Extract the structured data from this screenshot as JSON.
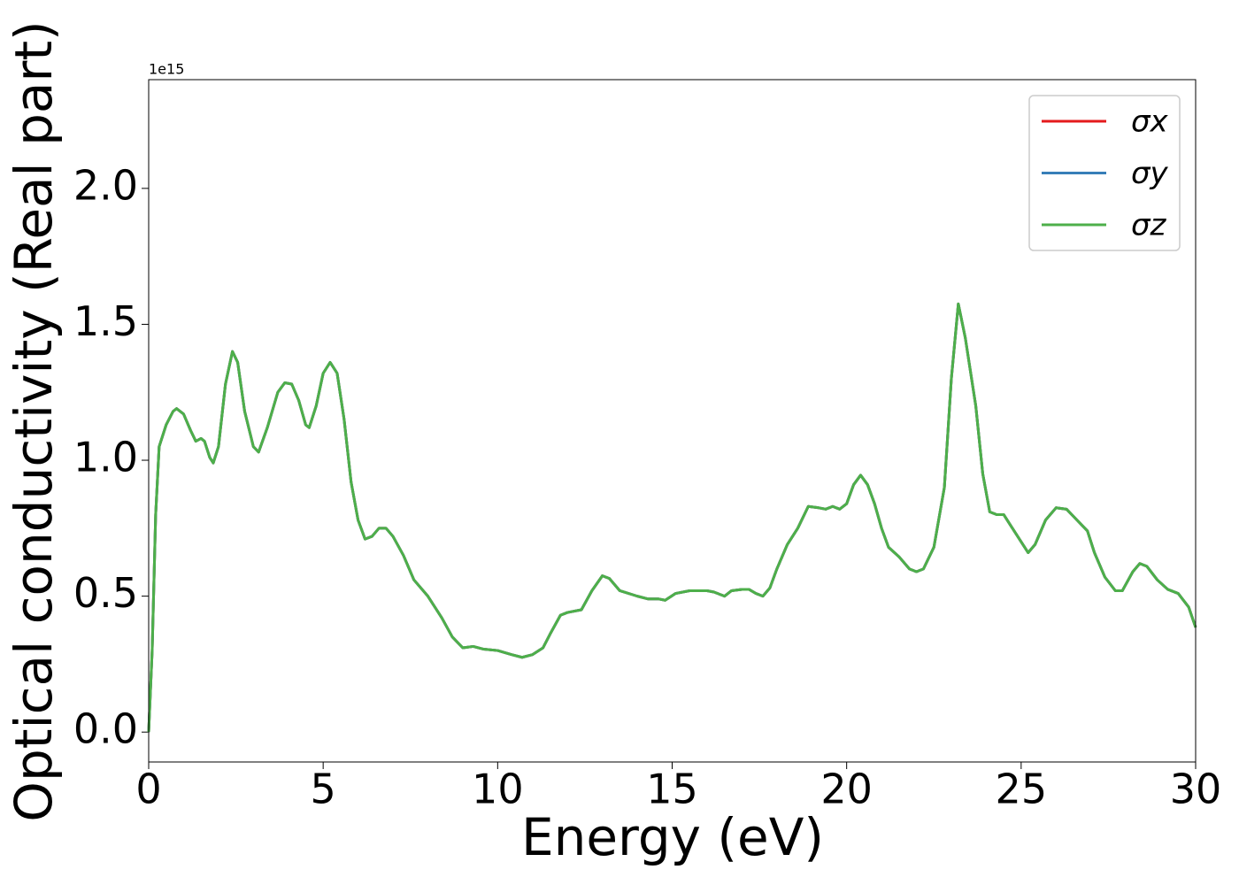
{
  "chart_data": {
    "type": "line",
    "xlabel": "Energy (eV)",
    "ylabel": "Optical conductivity (Real part)",
    "y_offset_label": "1e15",
    "x": [
      0,
      0.1,
      0.2,
      0.3,
      0.5,
      0.7,
      0.8,
      1.0,
      1.2,
      1.35,
      1.5,
      1.6,
      1.75,
      1.85,
      2.0,
      2.2,
      2.4,
      2.55,
      2.75,
      3.0,
      3.15,
      3.4,
      3.7,
      3.9,
      4.1,
      4.3,
      4.5,
      4.6,
      4.8,
      5.0,
      5.2,
      5.4,
      5.6,
      5.8,
      6.0,
      6.2,
      6.4,
      6.6,
      6.8,
      7.0,
      7.3,
      7.6,
      8.0,
      8.4,
      8.7,
      9.0,
      9.3,
      9.6,
      10.0,
      10.4,
      10.7,
      11.0,
      11.3,
      11.5,
      11.8,
      12.0,
      12.4,
      12.7,
      13.0,
      13.2,
      13.5,
      14.0,
      14.3,
      14.6,
      14.8,
      15.1,
      15.5,
      16.0,
      16.2,
      16.5,
      16.7,
      17.0,
      17.2,
      17.4,
      17.6,
      17.8,
      18.0,
      18.3,
      18.6,
      18.9,
      19.2,
      19.4,
      19.6,
      19.8,
      20.0,
      20.2,
      20.4,
      20.6,
      20.8,
      21.0,
      21.2,
      21.5,
      21.8,
      22.0,
      22.2,
      22.5,
      22.8,
      23.0,
      23.2,
      23.4,
      23.7,
      23.9,
      24.1,
      24.3,
      24.5,
      24.7,
      25.0,
      25.2,
      25.4,
      25.7,
      26.0,
      26.3,
      26.6,
      26.9,
      27.1,
      27.4,
      27.7,
      27.9,
      28.2,
      28.4,
      28.6,
      28.9,
      29.2,
      29.5,
      29.8,
      30
    ],
    "series": [
      {
        "name": "σx",
        "color": "#e41a1c",
        "values": [
          0,
          0.3,
          0.8,
          1.05,
          1.13,
          1.18,
          1.19,
          1.17,
          1.11,
          1.07,
          1.08,
          1.07,
          1.01,
          0.99,
          1.05,
          1.28,
          1.4,
          1.36,
          1.18,
          1.05,
          1.03,
          1.12,
          1.25,
          1.285,
          1.28,
          1.22,
          1.13,
          1.12,
          1.2,
          1.32,
          1.36,
          1.32,
          1.15,
          0.92,
          0.78,
          0.71,
          0.72,
          0.75,
          0.75,
          0.72,
          0.65,
          0.56,
          0.5,
          0.42,
          0.35,
          0.31,
          0.315,
          0.305,
          0.3,
          0.285,
          0.275,
          0.285,
          0.31,
          0.36,
          0.43,
          0.44,
          0.45,
          0.52,
          0.575,
          0.565,
          0.52,
          0.5,
          0.49,
          0.49,
          0.485,
          0.51,
          0.52,
          0.52,
          0.515,
          0.5,
          0.52,
          0.525,
          0.525,
          0.51,
          0.5,
          0.53,
          0.6,
          0.69,
          0.75,
          0.83,
          0.825,
          0.82,
          0.83,
          0.82,
          0.84,
          0.91,
          0.945,
          0.91,
          0.84,
          0.75,
          0.68,
          0.645,
          0.6,
          0.59,
          0.6,
          0.68,
          0.9,
          1.3,
          1.575,
          1.45,
          1.2,
          0.95,
          0.81,
          0.8,
          0.8,
          0.76,
          0.7,
          0.66,
          0.69,
          0.78,
          0.825,
          0.82,
          0.78,
          0.74,
          0.66,
          0.57,
          0.52,
          0.52,
          0.59,
          0.62,
          0.61,
          0.56,
          0.525,
          0.51,
          0.46,
          0.385
        ]
      },
      {
        "name": "σy",
        "color": "#377eb8",
        "values": [
          0,
          0.3,
          0.8,
          1.05,
          1.13,
          1.18,
          1.19,
          1.17,
          1.11,
          1.07,
          1.08,
          1.07,
          1.01,
          0.99,
          1.05,
          1.28,
          1.4,
          1.36,
          1.18,
          1.05,
          1.03,
          1.12,
          1.25,
          1.285,
          1.28,
          1.22,
          1.13,
          1.12,
          1.2,
          1.32,
          1.36,
          1.32,
          1.15,
          0.92,
          0.78,
          0.71,
          0.72,
          0.75,
          0.75,
          0.72,
          0.65,
          0.56,
          0.5,
          0.42,
          0.35,
          0.31,
          0.315,
          0.305,
          0.3,
          0.285,
          0.275,
          0.285,
          0.31,
          0.36,
          0.43,
          0.44,
          0.45,
          0.52,
          0.575,
          0.565,
          0.52,
          0.5,
          0.49,
          0.49,
          0.485,
          0.51,
          0.52,
          0.52,
          0.515,
          0.5,
          0.52,
          0.525,
          0.525,
          0.51,
          0.5,
          0.53,
          0.6,
          0.69,
          0.75,
          0.83,
          0.825,
          0.82,
          0.83,
          0.82,
          0.84,
          0.91,
          0.945,
          0.91,
          0.84,
          0.75,
          0.68,
          0.645,
          0.6,
          0.59,
          0.6,
          0.68,
          0.9,
          1.3,
          1.575,
          1.45,
          1.2,
          0.95,
          0.81,
          0.8,
          0.8,
          0.76,
          0.7,
          0.66,
          0.69,
          0.78,
          0.825,
          0.82,
          0.78,
          0.74,
          0.66,
          0.57,
          0.52,
          0.52,
          0.59,
          0.62,
          0.61,
          0.56,
          0.525,
          0.51,
          0.46,
          0.385
        ]
      },
      {
        "name": "σz",
        "color": "#4daf4a",
        "values": [
          0,
          0.3,
          0.8,
          1.05,
          1.13,
          1.18,
          1.19,
          1.17,
          1.11,
          1.07,
          1.08,
          1.07,
          1.01,
          0.99,
          1.05,
          1.28,
          1.4,
          1.36,
          1.18,
          1.05,
          1.03,
          1.12,
          1.25,
          1.285,
          1.28,
          1.22,
          1.13,
          1.12,
          1.2,
          1.32,
          1.36,
          1.32,
          1.15,
          0.92,
          0.78,
          0.71,
          0.72,
          0.75,
          0.75,
          0.72,
          0.65,
          0.56,
          0.5,
          0.42,
          0.35,
          0.31,
          0.315,
          0.305,
          0.3,
          0.285,
          0.275,
          0.285,
          0.31,
          0.36,
          0.43,
          0.44,
          0.45,
          0.52,
          0.575,
          0.565,
          0.52,
          0.5,
          0.49,
          0.49,
          0.485,
          0.51,
          0.52,
          0.52,
          0.515,
          0.5,
          0.52,
          0.525,
          0.525,
          0.51,
          0.5,
          0.53,
          0.6,
          0.69,
          0.75,
          0.83,
          0.825,
          0.82,
          0.83,
          0.82,
          0.84,
          0.91,
          0.945,
          0.91,
          0.84,
          0.75,
          0.68,
          0.645,
          0.6,
          0.59,
          0.6,
          0.68,
          0.9,
          1.3,
          1.575,
          1.45,
          1.2,
          0.95,
          0.81,
          0.8,
          0.8,
          0.76,
          0.7,
          0.66,
          0.69,
          0.78,
          0.825,
          0.82,
          0.78,
          0.74,
          0.66,
          0.57,
          0.52,
          0.52,
          0.59,
          0.62,
          0.61,
          0.56,
          0.525,
          0.51,
          0.46,
          0.385
        ]
      }
    ],
    "xlim": [
      0,
      30
    ],
    "xticks": [
      0,
      5,
      10,
      15,
      20,
      25,
      30
    ],
    "ylim": [
      -0.11,
      2.4
    ],
    "yticks": [
      {
        "value": 0,
        "label": "0.0"
      },
      0.5,
      {
        "value": 1,
        "label": "1.0"
      },
      1.5,
      {
        "value": 2,
        "label": "2.0"
      }
    ],
    "grid": false,
    "legend": "upper right"
  }
}
